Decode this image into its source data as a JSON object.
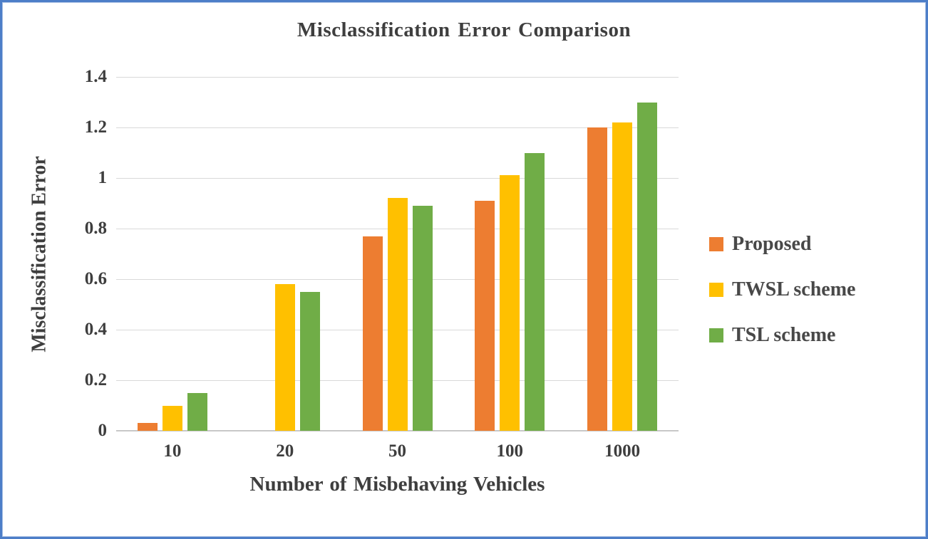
{
  "chart_data": {
    "type": "bar",
    "title": "Misclassification Error Comparison",
    "xlabel": "Number of Misbehaving Vehicles",
    "ylabel": "Misclassification Error",
    "categories": [
      "10",
      "20",
      "50",
      "100",
      "1000"
    ],
    "series": [
      {
        "name": "Proposed",
        "color": "#ED7D31",
        "values": [
          0.03,
          0,
          0.77,
          0.91,
          1.2
        ]
      },
      {
        "name": "TWSL scheme",
        "color": "#FFC000",
        "values": [
          0.1,
          0.58,
          0.92,
          1.01,
          1.22
        ]
      },
      {
        "name": "TSL scheme",
        "color": "#70AD47",
        "values": [
          0.15,
          0.55,
          0.89,
          1.1,
          1.3
        ]
      }
    ],
    "ylim": [
      0,
      1.4
    ],
    "yticks": [
      "0",
      "0.2",
      "0.4",
      "0.6",
      "0.8",
      "1",
      "1.2",
      "1.4"
    ],
    "grid": true,
    "legend_position": "right"
  },
  "frame": {
    "border_color": "#4D7EC8",
    "background": "#FFFFFF",
    "gridline_color": "#D9D9D9",
    "axis_line_color": "#C8C8C8",
    "text_color": "#3E3E3E"
  }
}
